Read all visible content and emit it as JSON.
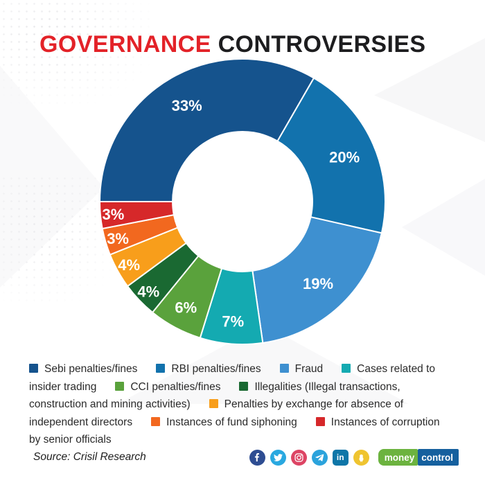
{
  "title": {
    "highlight": "GOVERNANCE",
    "rest": "CONTROVERSIES",
    "highlight_color": "#E32228",
    "rest_color": "#1D1D1F"
  },
  "chart_data": {
    "type": "pie",
    "subtype": "donut",
    "title": "Governance Controversies",
    "unit": "%",
    "start_angle_deg": 270,
    "hole_ratio": 0.49,
    "legend_position": "bottom",
    "slices": [
      {
        "label": "Sebi penalties/fines",
        "value": 33,
        "color": "#15538D"
      },
      {
        "label": "RBI penalties/fines",
        "value": 20,
        "color": "#1272AD"
      },
      {
        "label": "Fraud",
        "value": 19,
        "color": "#3E90D0"
      },
      {
        "label": "Cases related to insider trading",
        "value": 7,
        "color": "#14AAB1"
      },
      {
        "label": "CCI penalties/fines",
        "value": 6,
        "color": "#5AA23C"
      },
      {
        "label": "Illegalities (Illegal transactions, construction and mining activities)",
        "value": 4,
        "color": "#1A6932"
      },
      {
        "label": "Penalties by exchange for absence of independent directors",
        "value": 4,
        "color": "#F89E1B"
      },
      {
        "label": "Instances of fund siphoning",
        "value": 3,
        "color": "#F2681F"
      },
      {
        "label": "Instances of corruption by senior officials",
        "value": 3,
        "color": "#D6282A"
      }
    ],
    "data_labels": [
      "33%",
      "20%",
      "19%",
      "7%",
      "6%",
      "4%",
      "4%",
      "3%",
      "3%"
    ]
  },
  "source": "Source: Crisil Research",
  "footer": {
    "social_icons": [
      {
        "name": "facebook-icon",
        "color": "#2E4D92"
      },
      {
        "name": "twitter-icon",
        "color": "#29A8E0"
      },
      {
        "name": "instagram-icon",
        "color": "#DD405C"
      },
      {
        "name": "telegram-icon",
        "color": "#2BA3DC"
      },
      {
        "name": "linkedin-icon",
        "color": "#0E76A8"
      },
      {
        "name": "koo-icon",
        "color": "#EFC430"
      }
    ],
    "instagram_color_fix": "#DD4464",
    "linkedin_glyph": "in",
    "brand": {
      "money": "money",
      "control": "control",
      "money_bg": "#6CB33F",
      "control_bg": "#15609E"
    }
  }
}
